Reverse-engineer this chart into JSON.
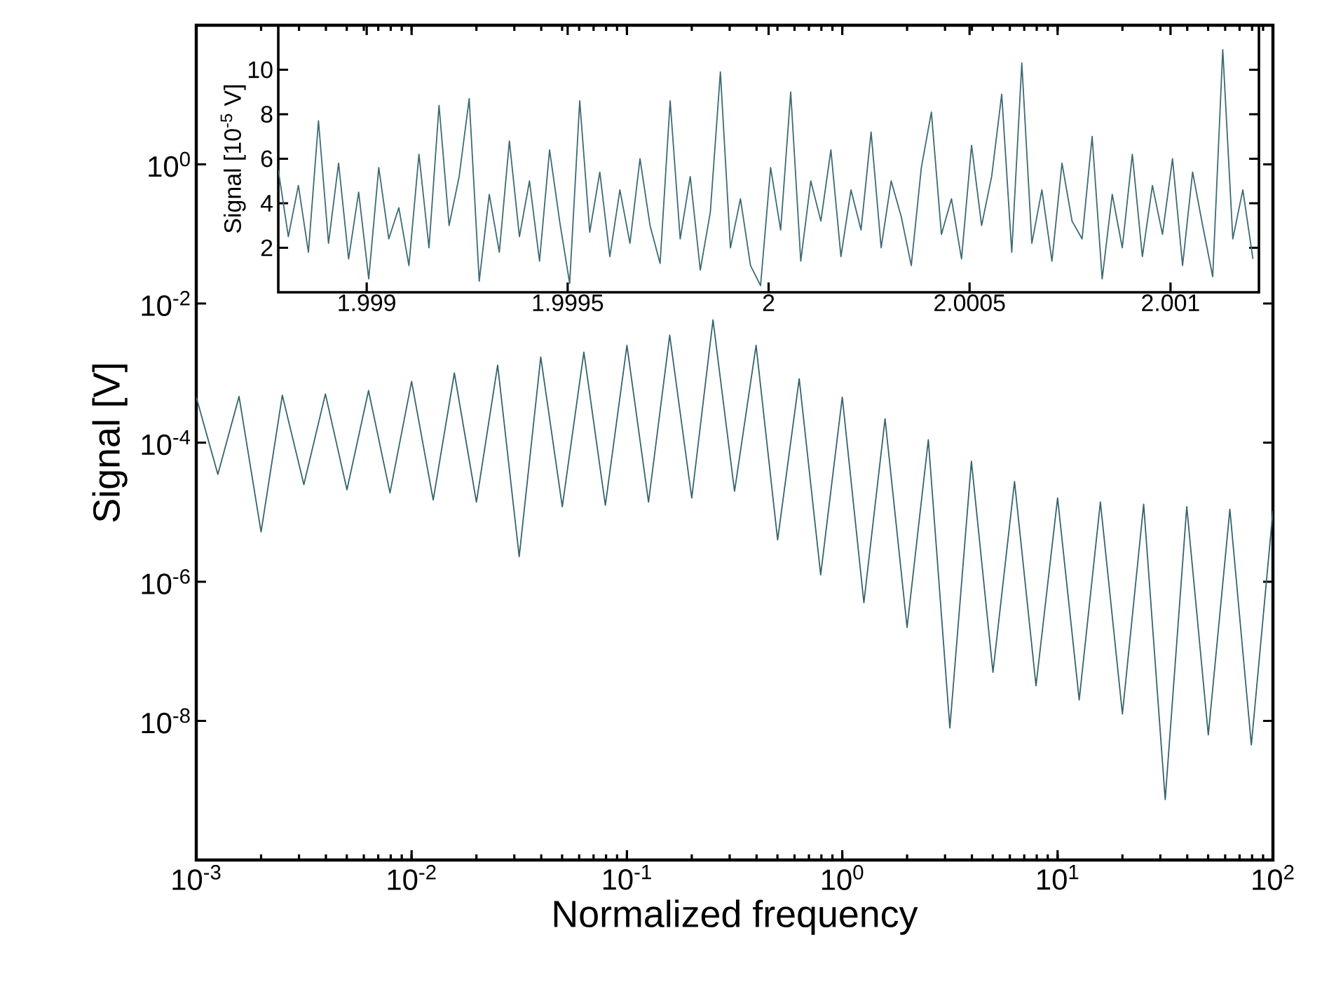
{
  "chart_data": [
    {
      "type": "line",
      "xlabel": "Normalized frequency",
      "ylabel": "Signal [V]",
      "log": "xy",
      "color": "#34646f",
      "marker": "none",
      "line_style": "solid",
      "x": [
        0.001,
        0.00126,
        0.00158,
        0.002,
        0.00251,
        0.00316,
        0.00398,
        0.00501,
        0.00631,
        0.00794,
        0.01,
        0.0126,
        0.0158,
        0.02,
        0.0251,
        0.0316,
        0.0398,
        0.0501,
        0.0631,
        0.0794,
        0.1,
        0.126,
        0.158,
        0.2,
        0.251,
        0.316,
        0.398,
        0.501,
        0.631,
        0.794,
        1,
        1.26,
        1.58,
        2,
        2.51,
        3.16,
        3.98,
        5.01,
        6.31,
        7.94,
        10,
        12.6,
        15.8,
        20,
        25.1,
        31.6,
        39.8,
        50.1,
        63.1,
        79.4,
        100
      ],
      "values": [
        0.00045,
        3.5e-05,
        0.00046,
        5.2e-06,
        0.00048,
        2.5e-05,
        0.0005,
        2.1e-05,
        0.00056,
        1.9e-05,
        0.00076,
        1.5e-05,
        0.001,
        1.4e-05,
        0.0013,
        2.3e-06,
        0.0017,
        1.2e-05,
        0.002,
        1.26e-05,
        0.0025,
        1.4e-05,
        0.0035,
        1.6e-05,
        0.0058,
        2e-05,
        0.0025,
        4e-06,
        0.00083,
        1.26e-06,
        0.00045,
        5e-07,
        0.00022,
        2.2e-07,
        0.00011,
        7.9e-09,
        5.4e-05,
        5e-08,
        2.75e-05,
        3.2e-08,
        1.6e-05,
        2e-08,
        1.4e-05,
        1.26e-08,
        1.3e-05,
        7.4e-10,
        1.2e-05,
        6.3e-09,
        1.1e-05,
        4.5e-09,
        1.05e-05
      ],
      "xlim": [
        0.001,
        100
      ],
      "ylim": [
        1e-10,
        100
      ],
      "xticks": [
        {
          "value": 0.001,
          "label": "10$^{-3}$"
        },
        {
          "value": 0.01,
          "label": "10$^{-2}$"
        },
        {
          "value": 0.1,
          "label": "10$^{-1}$"
        },
        {
          "value": 1,
          "label": "10$^{0}$"
        },
        {
          "value": 10,
          "label": "10$^{1}$"
        },
        {
          "value": 100,
          "label": "10$^{2}$"
        }
      ],
      "yticks": [
        {
          "value": 1e-08,
          "label": "10$^{-8}$"
        },
        {
          "value": 1e-06,
          "label": "10$^{-6}$"
        },
        {
          "value": 0.0001,
          "label": "10$^{-4}$"
        },
        {
          "value": 0.01,
          "label": "10$^{-2}$"
        },
        {
          "value": 1,
          "label": "10$^{0}$"
        }
      ]
    },
    {
      "type": "line",
      "ylabel": "Signal [10$^{-5}$ V]",
      "color": "#3d6b74",
      "marker": "none",
      "line_style": "solid",
      "x": [
        1.99878,
        1.998805,
        1.99883,
        1.998855,
        1.99888,
        1.998905,
        1.99893,
        1.998955,
        1.99898,
        1.999005,
        1.99903,
        1.999055,
        1.99908,
        1.999105,
        1.99913,
        1.999155,
        1.99918,
        1.999205,
        1.99923,
        1.999255,
        1.99928,
        1.999305,
        1.99933,
        1.999355,
        1.99938,
        1.999405,
        1.99943,
        1.999455,
        1.99948,
        1.999505,
        1.99953,
        1.999555,
        1.99958,
        1.999605,
        1.99963,
        1.999655,
        1.99968,
        1.999705,
        1.99973,
        1.999755,
        1.99978,
        1.999805,
        1.99983,
        1.999855,
        1.99988,
        1.999905,
        1.99993,
        1.999955,
        1.99998,
        2.000005,
        2.00003,
        2.000055,
        2.00008,
        2.000105,
        2.00013,
        2.000155,
        2.00018,
        2.000205,
        2.00023,
        2.000255,
        2.00028,
        2.000305,
        2.00033,
        2.000355,
        2.00038,
        2.000405,
        2.00043,
        2.000455,
        2.00048,
        2.000505,
        2.00053,
        2.000555,
        2.00058,
        2.000605,
        2.00063,
        2.000655,
        2.00068,
        2.000705,
        2.00073,
        2.000755,
        2.00078,
        2.000805,
        2.00083,
        2.000855,
        2.00088,
        2.000905,
        2.00093,
        2.000955,
        2.00098,
        2.001005,
        2.00103,
        2.001055,
        2.00108,
        2.001105,
        2.00113,
        2.001155,
        2.00118,
        2.001205
      ],
      "values": [
        5.5,
        2.5,
        4.8,
        1.8,
        7.7,
        2.2,
        5.8,
        1.5,
        4.5,
        0.6,
        5.6,
        2.4,
        3.8,
        1.2,
        6.2,
        2.0,
        8.4,
        3.0,
        5.2,
        8.7,
        0.5,
        4.4,
        1.8,
        6.8,
        2.5,
        5.0,
        1.4,
        6.4,
        3.2,
        0.4,
        8.6,
        2.7,
        5.4,
        1.6,
        4.6,
        2.2,
        6.0,
        3.0,
        1.3,
        8.6,
        2.4,
        5.2,
        1.0,
        3.6,
        9.9,
        2.0,
        4.2,
        1.2,
        0.3,
        5.6,
        2.8,
        9.0,
        1.4,
        5.0,
        3.2,
        6.4,
        1.6,
        4.6,
        2.8,
        7.2,
        2.0,
        5.0,
        3.4,
        1.2,
        5.6,
        8.1,
        2.6,
        4.2,
        1.5,
        6.6,
        3.0,
        5.2,
        8.9,
        1.8,
        10.3,
        2.2,
        4.6,
        1.4,
        5.8,
        3.2,
        2.4,
        7.0,
        0.6,
        4.4,
        2.0,
        6.2,
        1.6,
        4.8,
        2.6,
        6.0,
        1.2,
        5.4,
        3.0,
        0.7,
        10.9,
        2.4,
        4.6,
        1.5
      ],
      "xlim": [
        1.99878,
        2.00122
      ],
      "ylim": [
        0,
        12
      ],
      "xticks": [
        1.999,
        1.9995,
        2,
        2.0005,
        2.001
      ],
      "yticks": [
        2,
        4,
        6,
        8,
        10
      ]
    }
  ]
}
